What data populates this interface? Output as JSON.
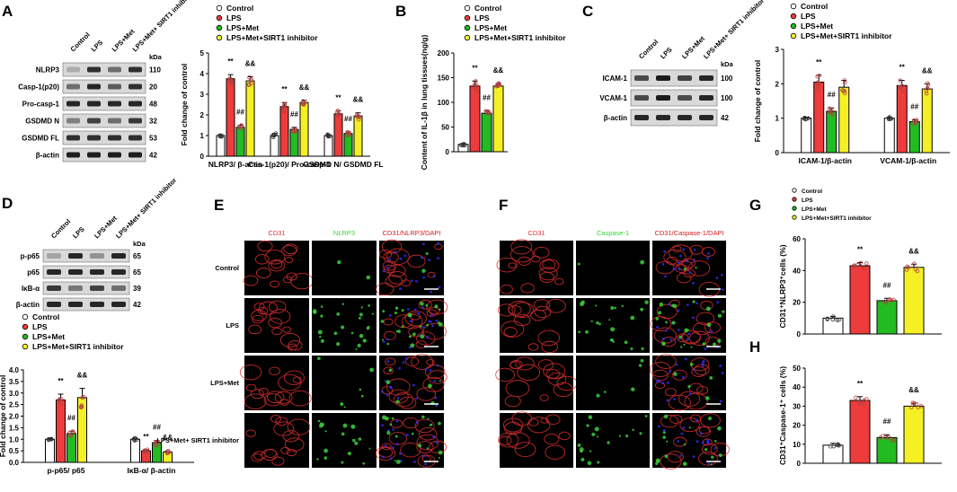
{
  "colors": {
    "control": "#ffffff",
    "lps": "#ee3b3b",
    "met": "#22bb22",
    "sirt1": "#f5f023",
    "outline": "#000000",
    "dot": "#b34040",
    "blot_bg": "#d9d9d9",
    "band": "#1a1a1a",
    "micro_red": "#e23030",
    "micro_green": "#3ad13a",
    "micro_blue": "#3030ff",
    "micro_bg": "#000000"
  },
  "legend_groups": [
    "Control",
    "LPS",
    "LPS+Met",
    "LPS+Met+SIRT1 inhibitor"
  ],
  "panels": {
    "A": {
      "letter": "A",
      "lanes": [
        "Control",
        "LPS",
        "LPS+Met",
        "LPS+Met+ SIRT1 inhibitor"
      ],
      "kda": "kDa",
      "rows": [
        {
          "label": "NLRP3",
          "mw": "110",
          "intensity": [
            0.15,
            0.85,
            0.5,
            0.85
          ]
        },
        {
          "label": "Casp-1(p20)",
          "mw": "20",
          "intensity": [
            0.5,
            0.9,
            0.6,
            0.85
          ]
        },
        {
          "label": "Pro-casp-1",
          "mw": "48",
          "intensity": [
            0.9,
            0.9,
            0.9,
            0.9
          ]
        },
        {
          "label": "GSDMD N",
          "mw": "32",
          "intensity": [
            0.4,
            0.75,
            0.5,
            0.8
          ]
        },
        {
          "label": "GSDMD FL",
          "mw": "53",
          "intensity": [
            0.85,
            0.85,
            0.85,
            0.85
          ]
        },
        {
          "label": "β-actin",
          "mw": "42",
          "intensity": [
            0.95,
            0.95,
            0.95,
            0.95
          ]
        }
      ]
    },
    "B": {
      "letter": "B"
    },
    "C": {
      "letter": "C",
      "lanes": [
        "Control",
        "LPS",
        "LPS+Met",
        "LPS+Met+ SIRT1 inhibitor"
      ],
      "kda": "kDa",
      "rows": [
        {
          "label": "ICAM-1",
          "mw": "100",
          "intensity": [
            0.7,
            0.95,
            0.75,
            0.9
          ]
        },
        {
          "label": "VCAM-1",
          "mw": "100",
          "intensity": [
            0.7,
            0.95,
            0.7,
            0.9
          ]
        },
        {
          "label": "β-actin",
          "mw": "42",
          "intensity": [
            0.9,
            0.9,
            0.9,
            0.9
          ]
        }
      ]
    },
    "D": {
      "letter": "D",
      "lanes": [
        "Control",
        "LPS",
        "LPS+Met",
        "LPS+Met+ SIRT1 inhibitor"
      ],
      "kda": "kDa",
      "rows": [
        {
          "label": "p-p65",
          "mw": "65",
          "intensity": [
            0.2,
            0.9,
            0.3,
            0.9
          ]
        },
        {
          "label": "p65",
          "mw": "65",
          "intensity": [
            0.9,
            0.9,
            0.9,
            0.9
          ]
        },
        {
          "label": "IκB-α",
          "mw": "39",
          "intensity": [
            0.8,
            0.45,
            0.75,
            0.5
          ]
        },
        {
          "label": "β-actin",
          "mw": "42",
          "intensity": [
            0.9,
            0.9,
            0.9,
            0.9
          ]
        }
      ]
    },
    "E": {
      "letter": "E",
      "columns": [
        "CD31",
        "NLRP3",
        "CD31/NLRP3/DAPI"
      ],
      "rows": [
        "Control",
        "LPS",
        "LPS+Met",
        "LPS+Met+ SIRT1 inhibitor"
      ],
      "green_level": [
        0.05,
        0.6,
        0.15,
        0.45
      ]
    },
    "F": {
      "letter": "F",
      "columns": [
        "CD31",
        "Caspase-1",
        "CD31/Caspase-1/DAPI"
      ],
      "green_level": [
        0.05,
        0.55,
        0.12,
        0.45
      ]
    },
    "G": {
      "letter": "G"
    },
    "H": {
      "letter": "H"
    }
  },
  "chart_data": [
    {
      "id": "A",
      "type": "bar",
      "ylabel": "Fold change of control",
      "ylim": [
        0,
        5
      ],
      "yticks": [
        "0",
        "1",
        "2",
        "3",
        "4",
        "5"
      ],
      "categories": [
        "NLRP3/ β-actin",
        "Cas-1(p20)/ Pro-casp-1",
        "GSDMD N/ GSDMD FL"
      ],
      "series": [
        {
          "name": "Control",
          "values": [
            1.0,
            1.0,
            1.0
          ],
          "errors": [
            0.05,
            0.1,
            0.05
          ],
          "marks": [
            "",
            "",
            ""
          ]
        },
        {
          "name": "LPS",
          "values": [
            3.75,
            2.4,
            2.05
          ],
          "errors": [
            0.2,
            0.2,
            0.15
          ],
          "marks": [
            "**",
            "**",
            "**"
          ]
        },
        {
          "name": "LPS+Met",
          "values": [
            1.4,
            1.3,
            1.1
          ],
          "errors": [
            0.1,
            0.1,
            0.08
          ],
          "marks": [
            "##",
            "##",
            "##"
          ]
        },
        {
          "name": "LPS+Met+SIRT1 inhibitor",
          "values": [
            3.65,
            2.6,
            1.95
          ],
          "errors": [
            0.2,
            0.1,
            0.15
          ],
          "marks": [
            "&&",
            "&&",
            "&&"
          ]
        }
      ]
    },
    {
      "id": "B",
      "type": "bar",
      "ylabel": "Content of IL-1β in lung tissues(ng/g)",
      "ylim": [
        0,
        200
      ],
      "yticks": [
        "0",
        "50",
        "100",
        "150",
        "200"
      ],
      "categories": [
        ""
      ],
      "series": [
        {
          "name": "Control",
          "values": [
            15
          ],
          "errors": [
            2
          ],
          "marks": [
            ""
          ]
        },
        {
          "name": "LPS",
          "values": [
            133
          ],
          "errors": [
            10
          ],
          "marks": [
            "**"
          ]
        },
        {
          "name": "LPS+Met",
          "values": [
            78
          ],
          "errors": [
            5
          ],
          "marks": [
            "##"
          ]
        },
        {
          "name": "LPS+Met+SIRT1 inhibitor",
          "values": [
            133
          ],
          "errors": [
            5
          ],
          "marks": [
            "&&"
          ]
        }
      ]
    },
    {
      "id": "C",
      "type": "bar",
      "ylabel": "Fold change of control",
      "ylim": [
        0,
        3
      ],
      "yticks": [
        "0",
        "1",
        "2",
        "3"
      ],
      "categories": [
        "ICAM-1/β-actin",
        "VCAM-1/β-actin"
      ],
      "series": [
        {
          "name": "Control",
          "values": [
            1.0,
            1.0
          ],
          "errors": [
            0.03,
            0.03
          ],
          "marks": [
            "",
            ""
          ]
        },
        {
          "name": "LPS",
          "values": [
            2.05,
            1.95
          ],
          "errors": [
            0.2,
            0.15
          ],
          "marks": [
            "**",
            "**"
          ]
        },
        {
          "name": "LPS+Met",
          "values": [
            1.2,
            0.9
          ],
          "errors": [
            0.1,
            0.05
          ],
          "marks": [
            "##",
            "##"
          ]
        },
        {
          "name": "LPS+Met+SIRT1 inhibitor",
          "values": [
            1.9,
            1.85
          ],
          "errors": [
            0.2,
            0.15
          ],
          "marks": [
            "",
            "&&"
          ]
        }
      ]
    },
    {
      "id": "D",
      "type": "bar",
      "ylabel": "Fold change of control",
      "ylim": [
        0,
        4
      ],
      "yticks": [
        "0.0",
        "0.5",
        "1.0",
        "1.5",
        "2.0",
        "2.5",
        "3.0",
        "3.5",
        "4.0"
      ],
      "categories": [
        "p-p65/ p65",
        "IκB-α/ β-actin"
      ],
      "series": [
        {
          "name": "Control",
          "values": [
            1.0,
            1.0
          ],
          "errors": [
            0.03,
            0.05
          ],
          "marks": [
            "",
            ""
          ]
        },
        {
          "name": "LPS",
          "values": [
            2.7,
            0.5
          ],
          "errors": [
            0.25,
            0.05
          ],
          "marks": [
            "**",
            "**"
          ]
        },
        {
          "name": "LPS+Met",
          "values": [
            1.25,
            0.85
          ],
          "errors": [
            0.1,
            0.1
          ],
          "marks": [
            "##",
            "##"
          ]
        },
        {
          "name": "LPS+Met+SIRT1 inhibitor",
          "values": [
            2.8,
            0.45
          ],
          "errors": [
            0.4,
            0.05
          ],
          "marks": [
            "&&",
            "&&"
          ]
        }
      ]
    },
    {
      "id": "G",
      "type": "bar",
      "ylabel": "CD31⁺NLRP3⁺cells (%)",
      "ylim": [
        0,
        60
      ],
      "yticks": [
        "0",
        "20",
        "40",
        "60"
      ],
      "categories": [
        ""
      ],
      "series": [
        {
          "name": "Control",
          "values": [
            10
          ],
          "errors": [
            1
          ],
          "marks": [
            ""
          ]
        },
        {
          "name": "LPS",
          "values": [
            43
          ],
          "errors": [
            2
          ],
          "marks": [
            "**"
          ]
        },
        {
          "name": "LPS+Met",
          "values": [
            21
          ],
          "errors": [
            1.5
          ],
          "marks": [
            "##"
          ]
        },
        {
          "name": "LPS+Met+SIRT1 inhibitor",
          "values": [
            42
          ],
          "errors": [
            2
          ],
          "marks": [
            "&&"
          ]
        }
      ]
    },
    {
      "id": "H",
      "type": "bar",
      "ylabel": "CD31⁺Caspase-1⁺ cells (%)",
      "ylim": [
        0,
        50
      ],
      "yticks": [
        "0",
        "10",
        "20",
        "30",
        "40",
        "50"
      ],
      "categories": [
        ""
      ],
      "series": [
        {
          "name": "Control",
          "values": [
            9.5
          ],
          "errors": [
            1
          ],
          "marks": [
            ""
          ]
        },
        {
          "name": "LPS",
          "values": [
            33
          ],
          "errors": [
            2
          ],
          "marks": [
            "**"
          ]
        },
        {
          "name": "LPS+Met",
          "values": [
            13.5
          ],
          "errors": [
            1.5
          ],
          "marks": [
            "##"
          ]
        },
        {
          "name": "LPS+Met+SIRT1 inhibitor",
          "values": [
            30
          ],
          "errors": [
            1.5
          ],
          "marks": [
            "&&"
          ]
        }
      ]
    }
  ]
}
